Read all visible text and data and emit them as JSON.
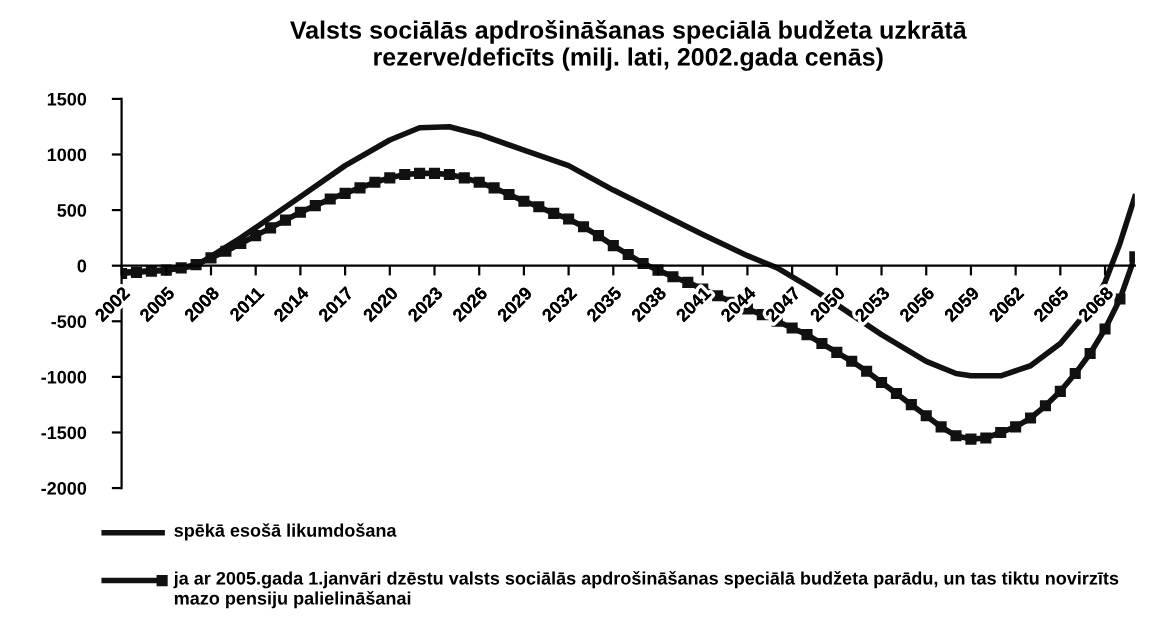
{
  "chart_data": {
    "type": "line",
    "title": "Valsts sociālās apdrošināšanas speciālā budžeta uzkrātā\nrezerve/deficīts (milj. lati, 2002.gada cenās)",
    "xlim": [
      2002,
      2070
    ],
    "xticks": [
      2002,
      2005,
      2008,
      2011,
      2014,
      2017,
      2020,
      2023,
      2026,
      2029,
      2032,
      2035,
      2038,
      2041,
      2044,
      2047,
      2050,
      2053,
      2056,
      2059,
      2062,
      2065,
      2068
    ],
    "ylim": [
      -2000,
      1500
    ],
    "yticks": [
      -2000,
      -1500,
      -1000,
      -500,
      0,
      500,
      1000,
      1500
    ],
    "grid": false,
    "legend": "bottom",
    "series": [
      {
        "name": "spēkā esošā likumdošana",
        "color": "#111111",
        "marker": "none",
        "x": [
          2002,
          2005,
          2007,
          2010,
          2014,
          2017,
          2020,
          2022,
          2024,
          2026,
          2029,
          2032,
          2035,
          2038,
          2041,
          2044,
          2046,
          2048,
          2050,
          2053,
          2056,
          2058,
          2059,
          2061,
          2063,
          2065,
          2067,
          2068,
          2069,
          2070
        ],
        "values": [
          -60,
          -40,
          0,
          250,
          620,
          900,
          1130,
          1240,
          1250,
          1180,
          1040,
          900,
          680,
          480,
          280,
          90,
          -20,
          -180,
          -350,
          -620,
          -860,
          -970,
          -990,
          -990,
          -900,
          -700,
          -380,
          -150,
          200,
          620
        ]
      },
      {
        "name": "ja ar 2005.gada 1.janvāri dzēstu valsts sociālās apdrošināšanas speciālā budžeta parādu, un tas tiktu novirzīts mazo pensiju palielināšanai",
        "color": "#111111",
        "marker": "square",
        "x": [
          2002,
          2003,
          2004,
          2005,
          2006,
          2007,
          2008,
          2009,
          2010,
          2011,
          2012,
          2013,
          2014,
          2015,
          2016,
          2017,
          2018,
          2019,
          2020,
          2021,
          2022,
          2023,
          2024,
          2025,
          2026,
          2027,
          2028,
          2029,
          2030,
          2031,
          2032,
          2033,
          2034,
          2035,
          2036,
          2037,
          2038,
          2039,
          2040,
          2041,
          2042,
          2043,
          2044,
          2045,
          2046,
          2047,
          2048,
          2049,
          2050,
          2051,
          2052,
          2053,
          2054,
          2055,
          2056,
          2057,
          2058,
          2059,
          2060,
          2061,
          2062,
          2063,
          2064,
          2065,
          2066,
          2067,
          2068,
          2069,
          2070
        ],
        "values": [
          -70,
          -60,
          -50,
          -40,
          -20,
          10,
          70,
          130,
          200,
          270,
          340,
          410,
          480,
          540,
          600,
          650,
          700,
          750,
          790,
          820,
          830,
          830,
          820,
          790,
          750,
          700,
          640,
          580,
          530,
          470,
          420,
          350,
          270,
          180,
          100,
          20,
          -40,
          -100,
          -150,
          -210,
          -270,
          -330,
          -390,
          -440,
          -500,
          -560,
          -620,
          -700,
          -780,
          -860,
          -950,
          -1050,
          -1150,
          -1250,
          -1350,
          -1450,
          -1530,
          -1560,
          -1550,
          -1500,
          -1450,
          -1370,
          -1260,
          -1130,
          -970,
          -790,
          -570,
          -300,
          80
        ]
      }
    ]
  }
}
